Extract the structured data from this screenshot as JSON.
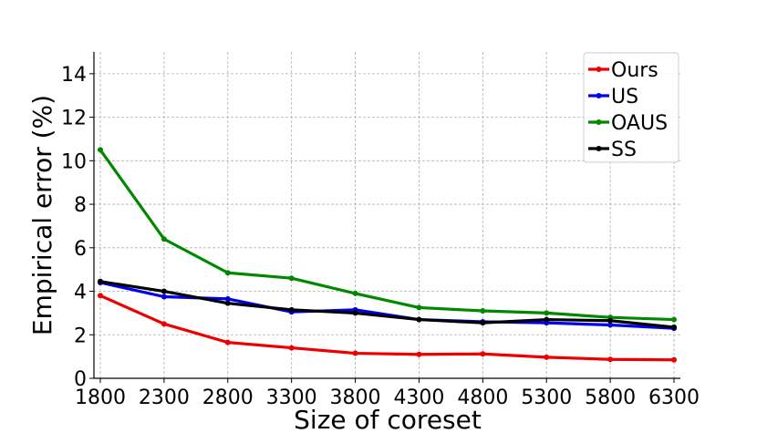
{
  "chart_data": {
    "type": "line",
    "title": "",
    "xlabel": "Size of coreset",
    "ylabel": "Empirical error (%)",
    "x": [
      1800,
      2300,
      2800,
      3300,
      3800,
      4300,
      4800,
      5300,
      5800,
      6300
    ],
    "xticks": [
      "1800",
      "2300",
      "2800",
      "3300",
      "3800",
      "4300",
      "4800",
      "5300",
      "5800",
      "6300"
    ],
    "yticks": [
      0,
      2,
      4,
      6,
      8,
      10,
      12,
      14
    ],
    "ylim": [
      0,
      15
    ],
    "grid": true,
    "legend_position": "top-right",
    "series": [
      {
        "name": "Ours",
        "color": "#ee0000",
        "values": [
          3.8,
          2.5,
          1.65,
          1.4,
          1.15,
          1.1,
          1.12,
          0.97,
          0.87,
          0.85
        ]
      },
      {
        "name": "US",
        "color": "#0000ee",
        "values": [
          4.4,
          3.75,
          3.65,
          3.05,
          3.15,
          2.7,
          2.6,
          2.55,
          2.45,
          2.3
        ]
      },
      {
        "name": "OAUS",
        "color": "#008800",
        "values": [
          10.5,
          6.4,
          4.85,
          4.6,
          3.9,
          3.25,
          3.1,
          3.0,
          2.8,
          2.7
        ]
      },
      {
        "name": "SS",
        "color": "#000000",
        "values": [
          4.45,
          4.0,
          3.45,
          3.15,
          3.0,
          2.7,
          2.55,
          2.7,
          2.65,
          2.35
        ]
      }
    ]
  }
}
